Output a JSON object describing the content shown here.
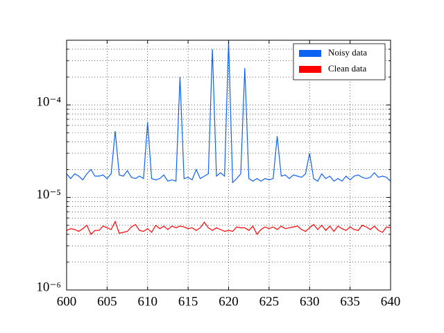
{
  "chart_data": {
    "type": "line",
    "log_y": true,
    "grid": true,
    "legend": "upper right",
    "xlim": [
      600,
      640
    ],
    "xticks": [
      600,
      605,
      610,
      615,
      620,
      625,
      630,
      635,
      640
    ],
    "ylim": [
      1e-06,
      0.0005
    ],
    "yticks": [
      {
        "value": 1e-06,
        "label": "10⁻⁶"
      },
      {
        "value": 1e-05,
        "label": "10⁻⁵"
      },
      {
        "value": 0.0001,
        "label": "10⁻⁴"
      }
    ],
    "yminorticks": [
      2e-06,
      3e-06,
      4e-06,
      5e-06,
      6e-06,
      7e-06,
      8e-06,
      9e-06,
      2e-05,
      3e-05,
      4e-05,
      5e-05,
      6e-05,
      7e-05,
      8e-05,
      9e-05,
      0.0002,
      0.0003,
      0.0004
    ],
    "x": [
      600,
      600.5,
      601,
      601.5,
      602,
      602.5,
      603,
      603.5,
      604,
      604.5,
      605,
      605.5,
      606,
      606.5,
      607,
      607.5,
      608,
      608.5,
      609,
      609.5,
      610,
      610.5,
      611,
      611.5,
      612,
      612.5,
      613,
      613.5,
      614,
      614.5,
      615,
      615.5,
      616,
      616.5,
      617,
      617.5,
      618,
      618.5,
      619,
      619.5,
      620,
      620.5,
      621,
      621.5,
      622,
      622.5,
      623,
      623.5,
      624,
      624.5,
      625,
      625.5,
      626,
      626.5,
      627,
      627.5,
      628,
      628.5,
      629,
      629.5,
      630,
      630.5,
      631,
      631.5,
      632,
      632.5,
      633,
      633.5,
      634,
      634.5,
      635,
      635.5,
      636,
      636.5,
      637,
      637.5,
      638,
      638.5,
      639,
      639.5,
      640
    ],
    "series": [
      {
        "name": "Noisy data",
        "color": "#0d62f2",
        "values": [
          1.8e-05,
          1.6e-05,
          1.8e-05,
          1.7e-05,
          1.55e-05,
          1.8e-05,
          2e-05,
          1.7e-05,
          1.7e-05,
          1.75e-05,
          1.6e-05,
          1.8e-05,
          5.2e-05,
          1.75e-05,
          1.7e-05,
          1.95e-05,
          1.65e-05,
          1.6e-05,
          1.7e-05,
          1.6e-05,
          6.5e-05,
          1.6e-05,
          1.55e-05,
          1.6e-05,
          1.75e-05,
          1.5e-05,
          1.55e-05,
          1.5e-05,
          0.0002,
          1.6e-05,
          1.65e-05,
          1.55e-05,
          2e-05,
          1.6e-05,
          1.7e-05,
          1.8e-05,
          0.0004,
          1.7e-05,
          1.85e-05,
          1.7e-05,
          0.00049,
          1.45e-05,
          1.6e-05,
          1.8e-05,
          0.00025,
          1.6e-05,
          1.5e-05,
          1.6e-05,
          1.5e-05,
          1.6e-05,
          1.55e-05,
          1.6e-05,
          4.6e-05,
          1.7e-05,
          1.75e-05,
          1.6e-05,
          1.75e-05,
          1.7e-05,
          1.65e-05,
          1.8e-05,
          3e-05,
          1.6e-05,
          1.5e-05,
          1.8e-05,
          1.6e-05,
          1.7e-05,
          1.5e-05,
          1.6e-05,
          1.5e-05,
          1.7e-05,
          1.55e-05,
          1.7e-05,
          1.75e-05,
          1.65e-05,
          1.6e-05,
          1.65e-05,
          1.85e-05,
          1.65e-05,
          1.7e-05,
          1.65e-05,
          1.5e-05
        ]
      },
      {
        "name": "Clean data",
        "color": "#ff0000",
        "values": [
          4.4e-06,
          4.6e-06,
          4.5e-06,
          4.3e-06,
          4.6e-06,
          5e-06,
          4e-06,
          4.4e-06,
          4.4e-06,
          4.9e-06,
          4.7e-06,
          4.5e-06,
          5.5e-06,
          4.1e-06,
          4.2e-06,
          4.3e-06,
          4.8e-06,
          5.1e-06,
          4.4e-06,
          4.3e-06,
          4.6e-06,
          4.2e-06,
          5e-06,
          4.6e-06,
          4.9e-06,
          4.5e-06,
          4.9e-06,
          4.7e-06,
          4.9e-06,
          4.8e-06,
          4.6e-06,
          4.7e-06,
          4.4e-06,
          4.7e-06,
          5.4e-06,
          4.7e-06,
          4.4e-06,
          4.7e-06,
          4.5e-06,
          4.3e-06,
          4.4e-06,
          4.3e-06,
          4.8e-06,
          4.7e-06,
          4.7e-06,
          4.4e-06,
          4.9e-06,
          4e-06,
          4.5e-06,
          4.8e-06,
          4.6e-06,
          4.8e-06,
          4.5e-06,
          4.9e-06,
          4.6e-06,
          4.7e-06,
          4.8e-06,
          4.9e-06,
          4.5e-06,
          4.3e-06,
          4.7e-06,
          5.1e-06,
          4.5e-06,
          5e-06,
          4.4e-06,
          4.9e-06,
          4.3e-06,
          4.9e-06,
          4.6e-06,
          4.4e-06,
          4.8e-06,
          4.5e-06,
          4.4e-06,
          5e-06,
          4.8e-06,
          4.5e-06,
          4.9e-06,
          4.4e-06,
          4.2e-06,
          4.8e-06,
          4.7e-06
        ]
      }
    ]
  }
}
